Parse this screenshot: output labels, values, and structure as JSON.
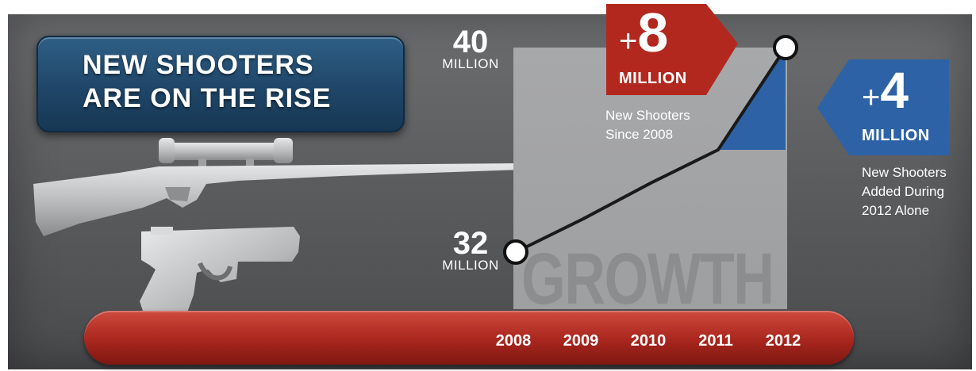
{
  "title": {
    "line1": "NEW SHOOTERS",
    "line2": "ARE ON THE RISE"
  },
  "background_word": "GROWTH",
  "callouts": {
    "increase_total": {
      "plus": "+",
      "number": "8",
      "unit": "MILLION",
      "text": [
        "New Shooters",
        "Since 2008"
      ]
    },
    "increase_2012": {
      "plus": "+",
      "number": "4",
      "unit": "MILLION",
      "text": [
        "New Shooters",
        "Added During",
        "2012 Alone"
      ]
    }
  },
  "point_labels": {
    "start": {
      "value": "32",
      "unit": "MILLION"
    },
    "end": {
      "value": "40",
      "unit": "MILLION"
    }
  },
  "icons": [
    "rifle-icon",
    "pistol-icon"
  ],
  "colors": {
    "accent_red": "#b2281f",
    "accent_blue": "#2d63a6",
    "title_blue": "#1f4668",
    "line": "#1a1a1a"
  },
  "chart_data": {
    "type": "line",
    "title": "NEW SHOOTERS ARE ON THE RISE",
    "xlabel": "",
    "ylabel": "",
    "categories": [
      "2008",
      "2009",
      "2010",
      "2011",
      "2012"
    ],
    "series": [
      {
        "values": [
          32,
          33.3,
          34.7,
          36,
          40
        ]
      }
    ],
    "ylim": [
      32,
      40
    ],
    "annotations": [
      "+8 MILLION New Shooters Since 2008",
      "+4 MILLION New Shooters Added During 2012 Alone"
    ],
    "grid": false
  }
}
